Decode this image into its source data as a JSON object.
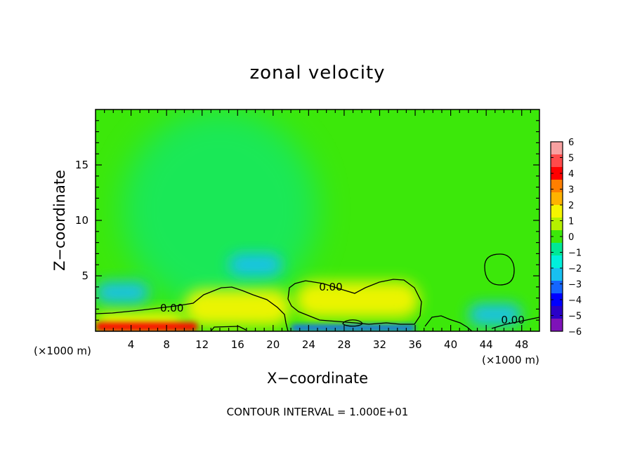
{
  "chart_data": {
    "type": "heatmap",
    "title": "zonal velocity",
    "xlabel": "X−coordinate",
    "ylabel": "Z−coordinate",
    "x_unit_left": "(×1000 m)",
    "x_unit_right": "(×1000 m)",
    "xlim": [
      0,
      50
    ],
    "ylim": [
      0,
      20
    ],
    "x_ticks": [
      4,
      8,
      12,
      16,
      20,
      24,
      28,
      32,
      36,
      40,
      44,
      48
    ],
    "y_ticks": [
      5,
      10,
      15
    ],
    "colorbar": {
      "ticks": [
        6,
        5,
        4,
        3,
        2,
        1,
        0,
        -1,
        -2,
        -3,
        -4,
        -5,
        -6
      ],
      "tick_labels": [
        "6",
        "5",
        "4",
        "3",
        "2",
        "1",
        "0",
        "−1",
        "−2",
        "−3",
        "−4",
        "−5",
        "−6"
      ],
      "colors": [
        "#f7a1a1",
        "#ff4a4a",
        "#ff0000",
        "#ff7f00",
        "#ffb300",
        "#f5f500",
        "#b5f000",
        "#3ce80a",
        "#00e896",
        "#00f0dc",
        "#18c0f0",
        "#1466ff",
        "#0000ff",
        "#2a00c8",
        "#7e12b8"
      ]
    },
    "contour_labels": [
      {
        "text": "0.00",
        "x": 8.6,
        "z": 2.1
      },
      {
        "text": "0.00",
        "x": 26.5,
        "z": 4.0
      },
      {
        "text": "0.00",
        "x": 47.0,
        "z": 1.0
      }
    ],
    "field_features": [
      {
        "x": 0,
        "x2": 11.5,
        "z": 0,
        "z2": 0.8,
        "value": 4.0
      },
      {
        "x": 0,
        "x2": 10,
        "z": 0,
        "z2": 1.8,
        "value": 2.0
      },
      {
        "x": 10,
        "x2": 22,
        "z": 0.5,
        "z2": 3.8,
        "value": 1.3
      },
      {
        "x": 22.5,
        "x2": 36.5,
        "z": 1.2,
        "z2": 4.5,
        "value": 1.4
      },
      {
        "x": 22,
        "x2": 36,
        "z": 0,
        "z2": 0.6,
        "value": -3.0
      },
      {
        "x": 0,
        "x2": 6,
        "z": 2.5,
        "z2": 4.5,
        "value": -2.5
      },
      {
        "x": 15,
        "x2": 21,
        "z": 5,
        "z2": 7,
        "value": -2.0
      },
      {
        "x": 42,
        "x2": 48,
        "z": 0.5,
        "z2": 2.5,
        "value": -2.0
      },
      {
        "x": 3,
        "x2": 25,
        "z": 2,
        "z2": 20,
        "value": -0.8
      }
    ],
    "background_value": 0.1,
    "contour_interval_text": "CONTOUR INTERVAL =  1.000E+01"
  }
}
